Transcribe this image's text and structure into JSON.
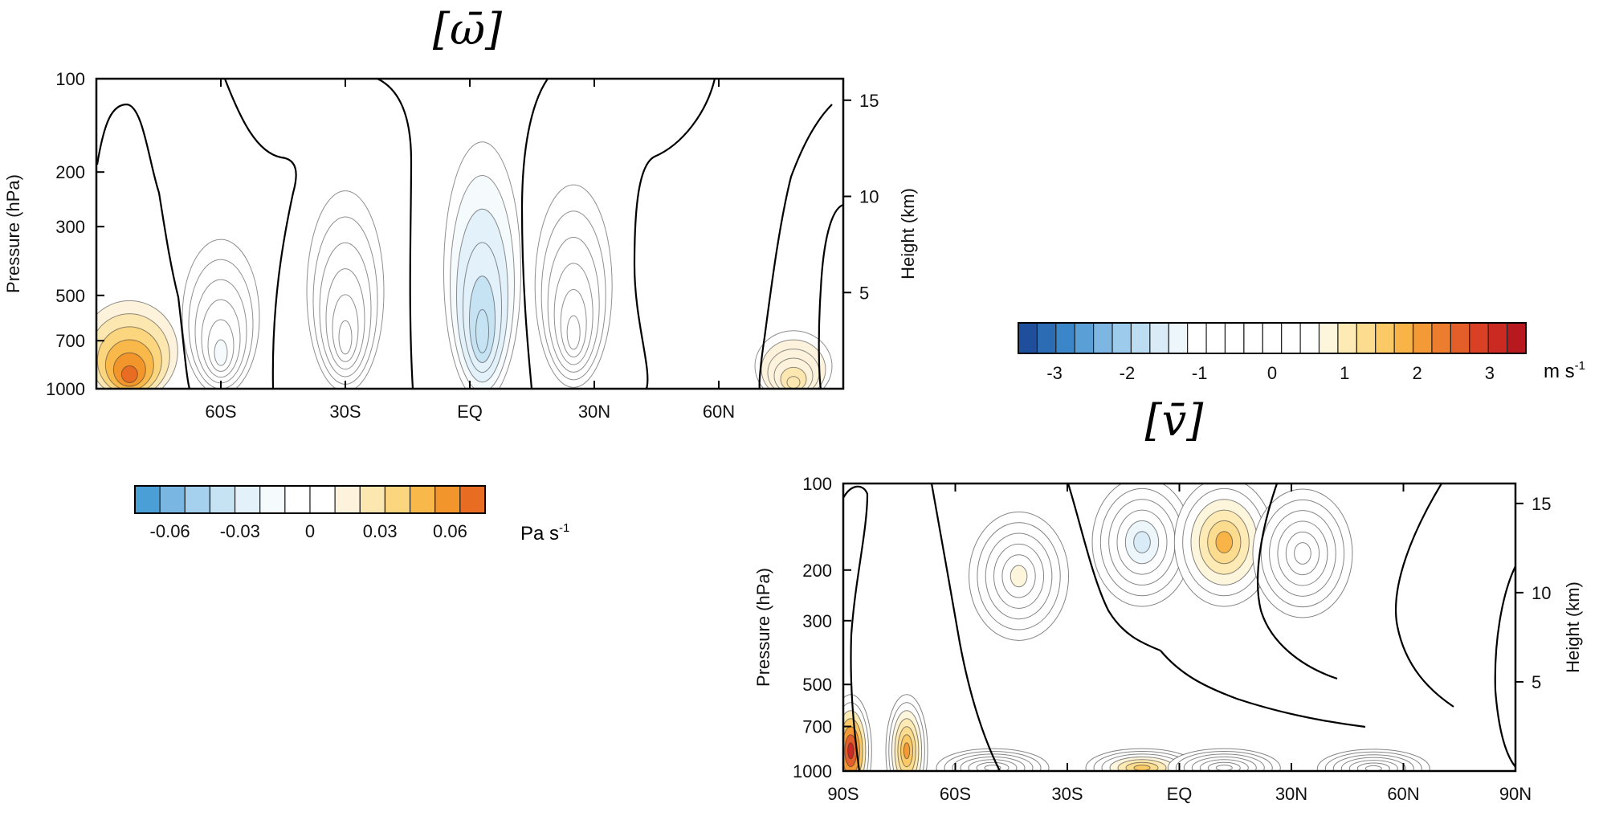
{
  "chart_data": [
    {
      "type": "heatmap",
      "title": "[ω̄]",
      "xlabel": "",
      "ylabel": "Pressure (hPa)",
      "y2label": "Height (km)",
      "x_ticks": [
        "60S",
        "30S",
        "EQ",
        "30N",
        "60N"
      ],
      "x_tick_values": [
        -60,
        -30,
        0,
        30,
        60
      ],
      "xlim": [
        -90,
        90
      ],
      "y_ticks": [
        "100",
        "200",
        "300",
        "500",
        "700",
        "1000"
      ],
      "y_tick_values": [
        100,
        200,
        300,
        500,
        700,
        1000
      ],
      "ylim": [
        1000,
        100
      ],
      "y_scale": "log",
      "y2_ticks": [
        "5",
        "10",
        "15"
      ],
      "y2_tick_values": [
        5,
        10,
        15
      ],
      "colorbar": {
        "unit": "Pa s",
        "unit_exponent": "-1",
        "tick_labels": [
          "-0.06",
          "-0.03",
          "0",
          "0.03",
          "0.06"
        ],
        "tick_values": [
          -0.06,
          -0.03,
          0,
          0.03,
          0.06
        ],
        "range": [
          -0.075,
          0.075
        ],
        "colors": [
          "#4a9fd6",
          "#79b7e2",
          "#a6d1ee",
          "#c6e3f4",
          "#e2f1fa",
          "#f5fafd",
          "#ffffff",
          "#ffffff",
          "#fdf3dc",
          "#fde7b0",
          "#fcd57f",
          "#f9b84a",
          "#f2952b",
          "#e86c22"
        ]
      },
      "features": [
        {
          "kind": "positive",
          "lat": -82,
          "p_top": 520,
          "p_bottom": 1000,
          "max": 0.075
        },
        {
          "kind": "negative",
          "lat": -60,
          "p_top": 330,
          "p_bottom": 950,
          "max": -0.012
        },
        {
          "kind": "positive",
          "lat": -30,
          "p_top": 230,
          "p_bottom": 930,
          "max": 0.01
        },
        {
          "kind": "negative",
          "lat": 3,
          "p_top": 160,
          "p_bottom": 1000,
          "max": -0.04
        },
        {
          "kind": "positive",
          "lat": 25,
          "p_top": 220,
          "p_bottom": 900,
          "max": 0.01
        },
        {
          "kind": "positive",
          "lat": 78,
          "p_top": 650,
          "p_bottom": 1000,
          "max": 0.03
        }
      ]
    },
    {
      "type": "colorbar",
      "unit": "m s",
      "unit_exponent": "-1",
      "tick_labels": [
        "-3",
        "-2",
        "-1",
        "0",
        "1",
        "2",
        "3"
      ],
      "tick_values": [
        -3,
        -2,
        -1,
        0,
        1,
        2,
        3
      ],
      "range": [
        -3.5,
        3.5
      ],
      "colors": [
        "#1f4e9c",
        "#2b6cb5",
        "#3a86c8",
        "#5aa0d6",
        "#7db6e2",
        "#9ccbeb",
        "#bcdcf2",
        "#d8ebf7",
        "#edf6fb",
        "#ffffff",
        "#ffffff",
        "#ffffff",
        "#ffffff",
        "#ffffff",
        "#ffffff",
        "#ffffff",
        "#fdf5dc",
        "#fdeab4",
        "#fcdc8e",
        "#fbca66",
        "#f8b446",
        "#f39a36",
        "#ec7d2e",
        "#e45e29",
        "#da4024",
        "#cb2a23",
        "#b8191f"
      ]
    },
    {
      "type": "heatmap",
      "title": "[v̄]",
      "xlabel": "",
      "ylabel": "Pressure (hPa)",
      "y2label": "Height (km)",
      "x_ticks": [
        "90S",
        "60S",
        "30S",
        "EQ",
        "30N",
        "60N",
        "90N"
      ],
      "x_tick_values": [
        -90,
        -60,
        -30,
        0,
        30,
        60,
        90
      ],
      "xlim": [
        -90,
        90
      ],
      "y_ticks": [
        "100",
        "200",
        "300",
        "500",
        "700",
        "1000"
      ],
      "y_tick_values": [
        100,
        200,
        300,
        500,
        700,
        1000
      ],
      "ylim": [
        1000,
        100
      ],
      "y_scale": "log",
      "y2_ticks": [
        "5",
        "10",
        "15"
      ],
      "y2_tick_values": [
        5,
        10,
        15
      ],
      "features": [
        {
          "kind": "positive",
          "lat": -43,
          "p": 210,
          "max": 0.8
        },
        {
          "kind": "negative",
          "lat": -10,
          "p": 160,
          "max": -1.5
        },
        {
          "kind": "positive",
          "lat": 12,
          "p": 160,
          "max": 1.7
        },
        {
          "kind": "negative",
          "lat": 33,
          "p": 175,
          "max": -0.9
        },
        {
          "kind": "positive",
          "lat": -88,
          "p": 850,
          "max": 3.0
        },
        {
          "kind": "positive",
          "lat": -73,
          "p": 850,
          "max": 2.0
        },
        {
          "kind": "negative",
          "lat": -50,
          "p": 975,
          "max": -0.7
        },
        {
          "kind": "positive",
          "lat": -10,
          "p": 975,
          "max": 1.5
        },
        {
          "kind": "negative",
          "lat": 12,
          "p": 975,
          "max": -0.9
        },
        {
          "kind": "positive",
          "lat": 52,
          "p": 980,
          "max": 0.6
        }
      ]
    }
  ]
}
